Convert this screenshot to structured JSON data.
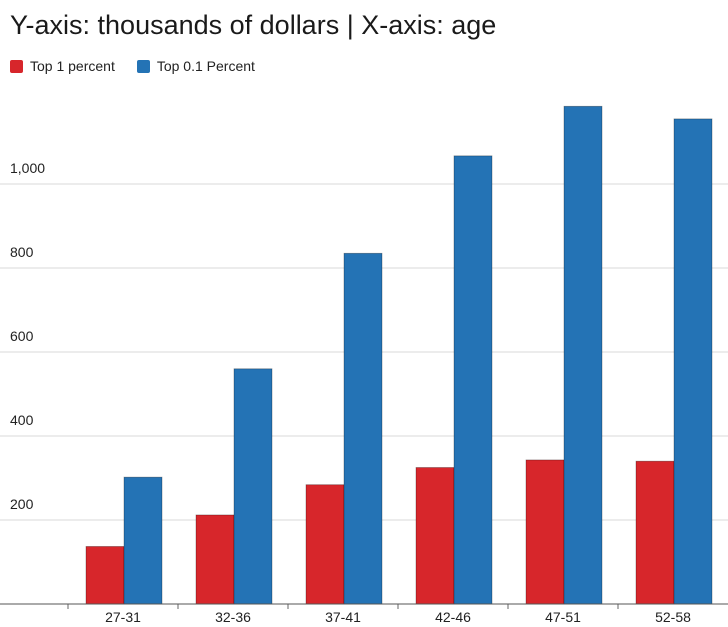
{
  "title": "Y-axis: thousands of dollars | X-axis: age",
  "legend": [
    {
      "label": "Top 1 percent",
      "color": "#d7262b"
    },
    {
      "label": "Top 0.1 Percent",
      "color": "#2473b5"
    }
  ],
  "chart_data": {
    "type": "bar",
    "title": "Y-axis: thousands of dollars | X-axis: age",
    "xlabel": "",
    "ylabel": "",
    "categories": [
      "27-31",
      "32-36",
      "37-41",
      "42-46",
      "47-51",
      "52-58"
    ],
    "series": [
      {
        "name": "Top 1 percent",
        "color": "#d7262b",
        "values": [
          137,
          212,
          284,
          325,
          343,
          340
        ]
      },
      {
        "name": "Top 0.1 Percent",
        "color": "#2473b5",
        "values": [
          302,
          560,
          835,
          1067,
          1185,
          1155
        ]
      }
    ],
    "yticks": [
      200,
      400,
      600,
      800,
      1000
    ],
    "ytick_labels": [
      "200",
      "400",
      "600",
      "800",
      "1,000"
    ],
    "ylim": [
      0,
      1200
    ],
    "grid": true,
    "legend_position": "top-left"
  }
}
